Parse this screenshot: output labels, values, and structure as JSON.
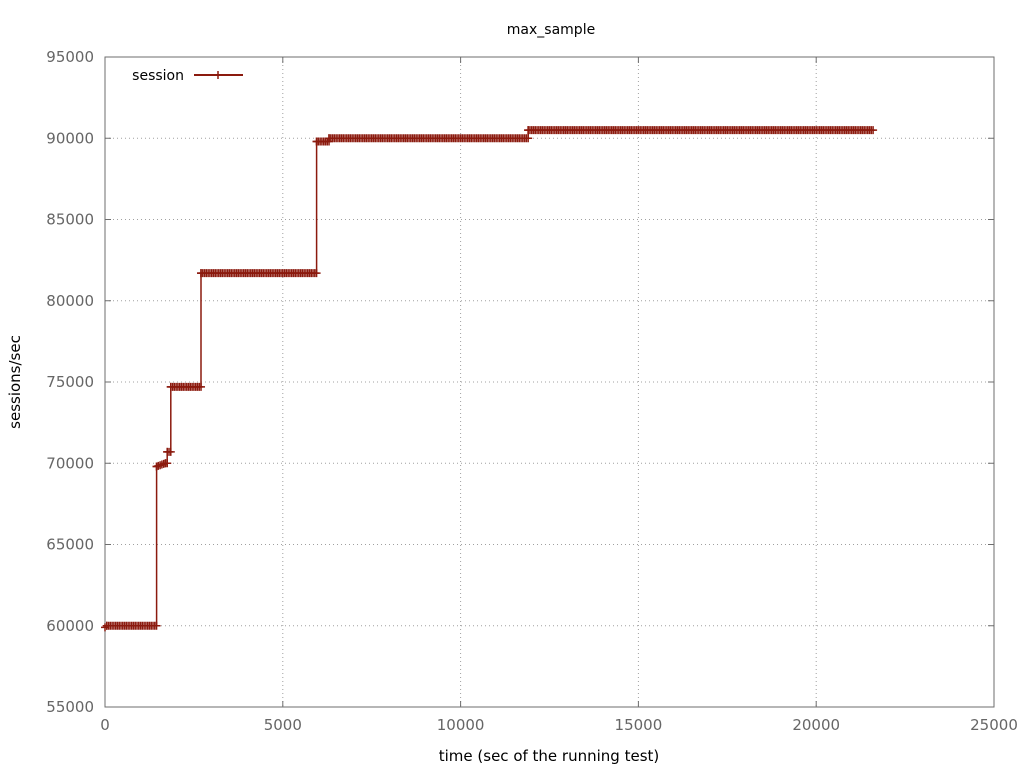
{
  "chart_data": {
    "type": "line",
    "title": "max_sample",
    "xlabel": "time (sec of the running test)",
    "ylabel": "sessions/sec",
    "xlim": [
      0,
      25000
    ],
    "ylim": [
      55000,
      95000
    ],
    "x_ticks": [
      "0",
      "5000",
      "10000",
      "15000",
      "20000",
      "25000"
    ],
    "y_ticks": [
      "55000",
      "60000",
      "65000",
      "70000",
      "75000",
      "80000",
      "85000",
      "90000",
      "95000"
    ],
    "grid": true,
    "legend_position": "top-left",
    "series": [
      {
        "name": "session",
        "color": "#8b1a0e",
        "marker": "plus",
        "x": [
          0,
          50,
          1450,
          1450,
          1700,
          1750,
          1750,
          1850,
          1850,
          2700,
          2700,
          5950,
          5950,
          6300,
          6300,
          11900,
          11900,
          21600
        ],
        "y": [
          59900,
          60000,
          60000,
          69800,
          70000,
          70000,
          70700,
          70700,
          74700,
          74700,
          81700,
          81700,
          89800,
          89800,
          90000,
          90000,
          90500,
          90500
        ]
      }
    ]
  }
}
